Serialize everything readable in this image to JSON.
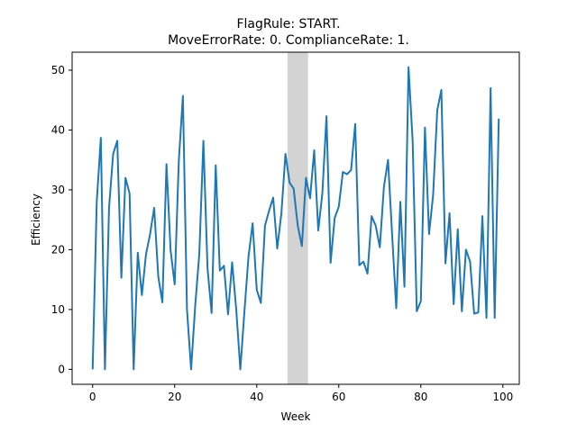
{
  "chart_data": {
    "type": "line",
    "title_lines": [
      "FlagRule: START.",
      "MoveErrorRate: 0. ComplianceRate: 1."
    ],
    "xlabel": "Week",
    "ylabel": "Efficiency",
    "xlim": [
      -5,
      104
    ],
    "ylim": [
      -2.5,
      53
    ],
    "xticks": [
      0,
      20,
      40,
      60,
      80,
      100
    ],
    "yticks": [
      0,
      10,
      20,
      30,
      40,
      50
    ],
    "grid": false,
    "line_color": "#1f77b4",
    "shade_color": "#d3d3d3",
    "shaded_region": [
      47.5,
      52.5
    ],
    "x": [
      0,
      1,
      2,
      3,
      4,
      5,
      6,
      7,
      8,
      9,
      10,
      11,
      12,
      13,
      14,
      15,
      16,
      17,
      18,
      19,
      20,
      21,
      22,
      23,
      24,
      25,
      26,
      27,
      28,
      29,
      30,
      31,
      32,
      33,
      34,
      35,
      36,
      37,
      38,
      39,
      40,
      41,
      42,
      43,
      44,
      45,
      46,
      47,
      48,
      49,
      50,
      51,
      52,
      53,
      54,
      55,
      56,
      57,
      58,
      59,
      60,
      61,
      62,
      63,
      64,
      65,
      66,
      67,
      68,
      69,
      70,
      71,
      72,
      73,
      74,
      75,
      76,
      77,
      78,
      79,
      80,
      81,
      82,
      83,
      84,
      85,
      86,
      87,
      88,
      89,
      90,
      91,
      92,
      93,
      94,
      95,
      96,
      97,
      98,
      99
    ],
    "y": [
      0,
      28,
      38.7,
      0,
      27,
      36,
      38.2,
      15.3,
      32,
      29.4,
      0,
      19.5,
      12.4,
      19.2,
      22.6,
      27,
      15.5,
      11.2,
      34.3,
      19.9,
      14.2,
      34.8,
      45.7,
      10,
      0,
      10.6,
      19.3,
      38.2,
      16.9,
      9.4,
      34.1,
      16.5,
      17.3,
      9.2,
      17.9,
      10,
      0,
      9.7,
      18.9,
      24.4,
      13.3,
      11.1,
      24,
      26.5,
      28.7,
      20.2,
      26,
      36,
      31.2,
      30.2,
      24,
      20.6,
      32,
      28.6,
      36.6,
      23.2,
      29.5,
      42.3,
      17.8,
      25.3,
      27.2,
      33,
      32.6,
      33.3,
      41,
      17.4,
      18,
      16,
      25.6,
      24,
      20.4,
      30.5,
      35,
      22.5,
      10.2,
      28,
      13.8,
      50.5,
      38.2,
      9.7,
      11.4,
      40.4,
      22.6,
      29.2,
      43.3,
      46.7,
      17.7,
      26.1,
      10.9,
      23.4,
      9.7,
      20,
      18,
      9.3,
      9.5,
      25.6,
      8.6,
      47,
      8.6,
      41.9
    ]
  }
}
